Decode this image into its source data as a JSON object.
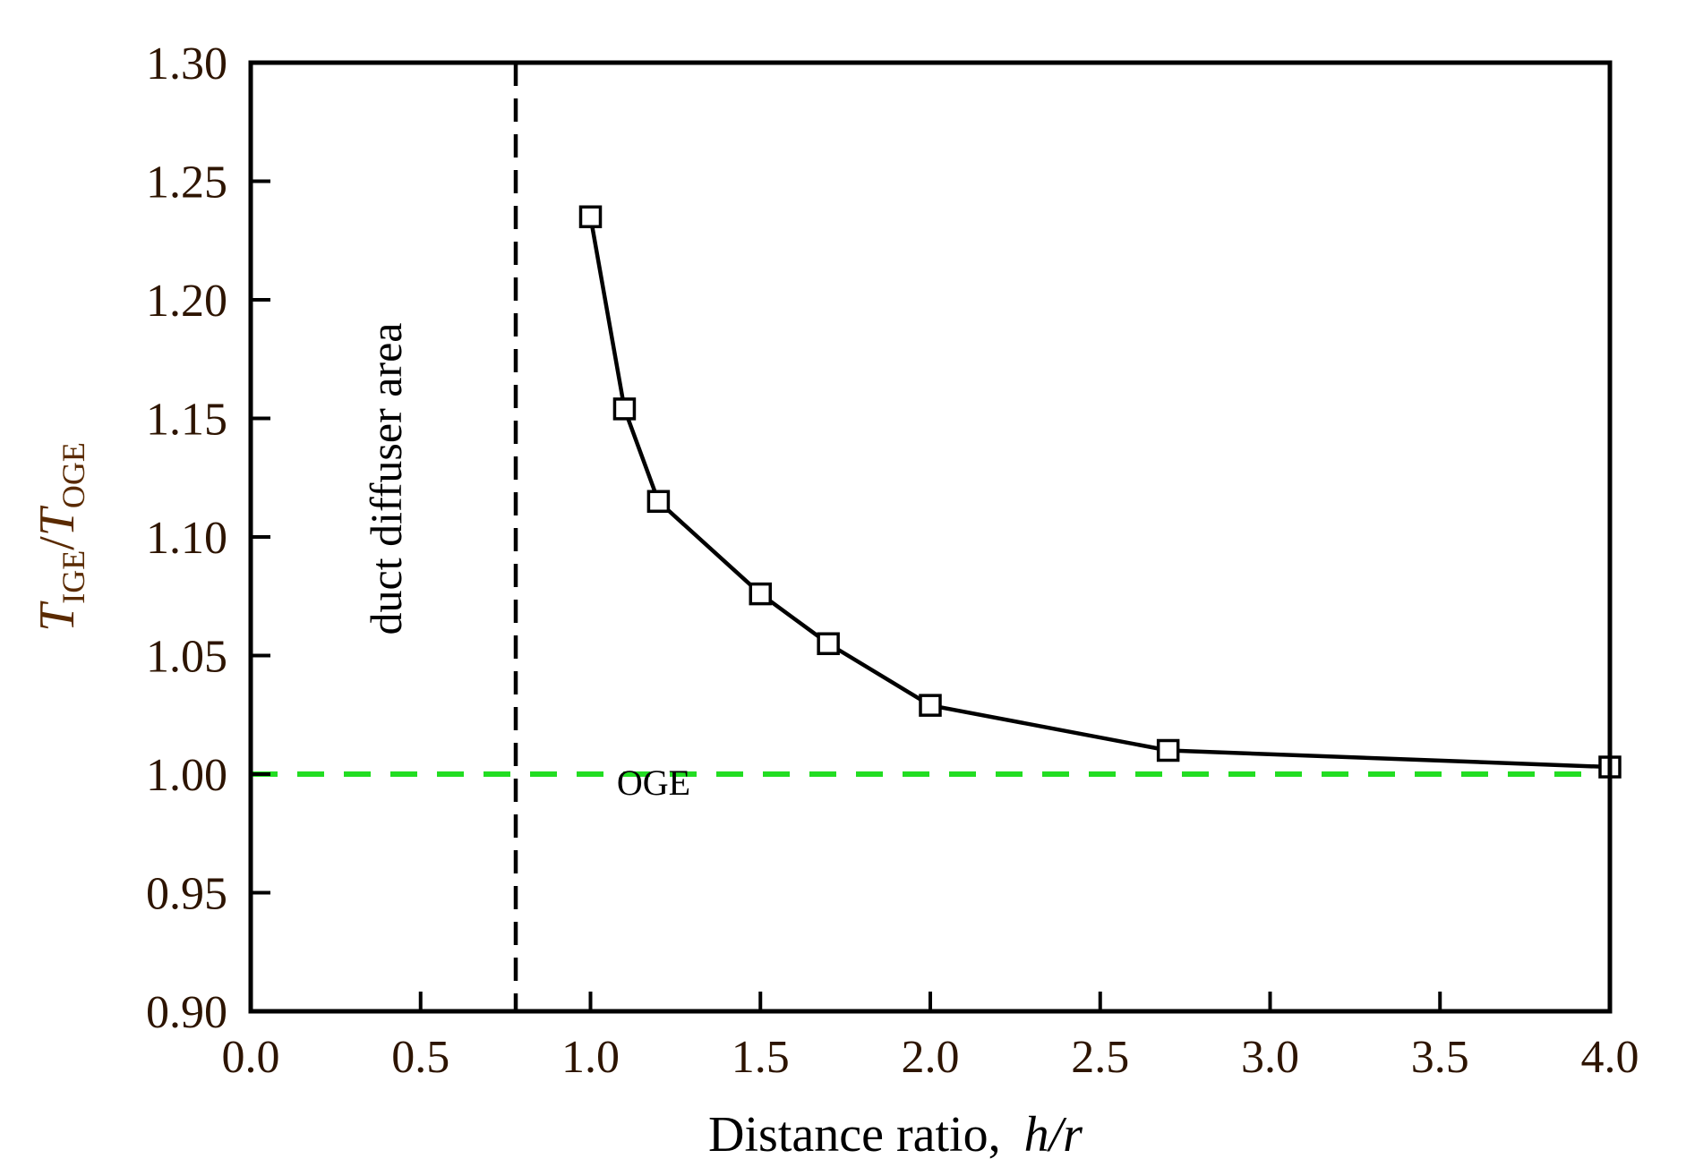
{
  "chart_data": {
    "type": "line",
    "title": "",
    "xlabel": "Distance ratio,",
    "xlabel_italic": "h/r",
    "ylabel": {
      "t1": "T",
      "sub1": "IGE",
      "slash": "/",
      "t2": "T",
      "sub2": "OGE"
    },
    "xlim": [
      0.0,
      4.0
    ],
    "ylim": [
      0.9,
      1.3
    ],
    "xticks": [
      "0.0",
      "0.5",
      "1.0",
      "1.5",
      "2.0",
      "2.5",
      "3.0",
      "3.5",
      "4.0"
    ],
    "yticks": [
      "0.90",
      "0.95",
      "1.00",
      "1.05",
      "1.10",
      "1.15",
      "1.20",
      "1.25",
      "1.30"
    ],
    "series": [
      {
        "name": "T_IGE/T_OGE",
        "marker": "open-square",
        "color": "#000000",
        "x": [
          1.0,
          1.1,
          1.2,
          1.5,
          1.7,
          2.0,
          2.7,
          4.0
        ],
        "y": [
          1.235,
          1.154,
          1.115,
          1.076,
          1.055,
          1.029,
          1.01,
          1.003
        ]
      }
    ],
    "reference_lines": [
      {
        "name": "duct-diffuser-boundary",
        "orientation": "vertical",
        "x": 0.78,
        "style": "dashed",
        "color": "#000000"
      },
      {
        "name": "oge-line",
        "orientation": "horizontal",
        "y": 1.0,
        "style": "dashed",
        "color": "#22dd22"
      }
    ],
    "annotations": {
      "duct_area": "duct diffuser area",
      "oge": "OGE"
    },
    "grid": false
  }
}
